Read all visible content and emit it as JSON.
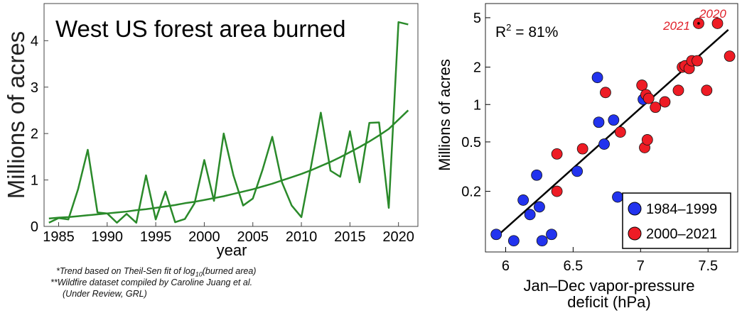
{
  "chart_data": [
    {
      "type": "line",
      "title": "West US forest area burned",
      "xlabel": "year",
      "ylabel": "Millions of acres",
      "xlim": [
        1983.5,
        2022
      ],
      "ylim": [
        0,
        4.8
      ],
      "xticks": [
        1985,
        1990,
        1995,
        2000,
        2005,
        2010,
        2015,
        2020
      ],
      "yticks": [
        0,
        1,
        2,
        3,
        4
      ],
      "line_color": "#2a8a2a",
      "x": [
        1984,
        1985,
        1986,
        1987,
        1988,
        1989,
        1990,
        1991,
        1992,
        1993,
        1994,
        1995,
        1996,
        1997,
        1998,
        1999,
        2000,
        2001,
        2002,
        2003,
        2004,
        2005,
        2006,
        2007,
        2008,
        2009,
        2010,
        2011,
        2012,
        2013,
        2014,
        2015,
        2016,
        2017,
        2018,
        2019,
        2020,
        2021
      ],
      "series": [
        {
          "values": [
            0.08,
            0.18,
            0.15,
            0.8,
            1.65,
            0.3,
            0.28,
            0.08,
            0.27,
            0.08,
            1.1,
            0.15,
            0.75,
            0.09,
            0.16,
            0.5,
            1.43,
            0.55,
            2.0,
            1.1,
            0.45,
            0.6,
            1.22,
            1.93,
            0.95,
            0.45,
            0.2,
            1.3,
            2.45,
            1.2,
            1.07,
            2.05,
            0.95,
            2.23,
            2.24,
            0.4,
            4.4,
            4.35
          ]
        },
        {
          "values": [
            0.17,
            0.19,
            0.2,
            0.22,
            0.24,
            0.26,
            0.28,
            0.3,
            0.32,
            0.35,
            0.37,
            0.4,
            0.43,
            0.46,
            0.5,
            0.53,
            0.57,
            0.61,
            0.65,
            0.7,
            0.75,
            0.8,
            0.86,
            0.92,
            0.99,
            1.06,
            1.13,
            1.21,
            1.3,
            1.39,
            1.49,
            1.6,
            1.71,
            1.83,
            1.96,
            2.1,
            2.3,
            2.5
          ]
        }
      ],
      "footnotes": [
        "*Trend based on Theil-Sen fit of log",
        "10",
        "(burned area)",
        "**Wildfire dataset compiled by Caroline Juang et al.",
        "(Under Review, GRL)"
      ]
    },
    {
      "type": "scatter",
      "xlabel_line1": "Jan–Dec vapor-pressure",
      "xlabel_line2": "deficit (hPa)",
      "ylabel": "Millions of acres",
      "xlim": [
        5.85,
        7.72
      ],
      "ylim": [
        0.065,
        6.5
      ],
      "yscale": "log",
      "xticks": [
        "6",
        "6.5",
        "7",
        "7.5"
      ],
      "xtick_values": [
        6,
        6.5,
        7,
        7.5
      ],
      "yticks": [
        "0.2",
        "0.5",
        "1",
        "2",
        "5"
      ],
      "ytick_values": [
        0.2,
        0.5,
        1,
        2,
        5
      ],
      "annotation_r2": "R",
      "annotation_sup": "2",
      "annotation_rest": " = 81%",
      "labels": [
        {
          "text": "2021",
          "x": 7.43,
          "y": 4.5
        },
        {
          "text": "2020",
          "x": 7.57,
          "y": 4.5
        }
      ],
      "label_color": "#e0202a",
      "fit": {
        "x": [
          5.95,
          7.65
        ],
        "y": [
          0.09,
          4.0
        ]
      },
      "series": [
        {
          "name": "1984–1999",
          "color": "#2233ee",
          "points": [
            [
              5.93,
              0.09
            ],
            [
              6.06,
              0.08
            ],
            [
              6.13,
              0.17
            ],
            [
              6.18,
              0.13
            ],
            [
              6.23,
              0.27
            ],
            [
              6.25,
              0.15
            ],
            [
              6.27,
              0.08
            ],
            [
              6.34,
              0.09
            ],
            [
              6.53,
              0.29
            ],
            [
              6.68,
              1.65
            ],
            [
              6.69,
              0.72
            ],
            [
              6.73,
              0.48
            ],
            [
              6.8,
              0.75
            ],
            [
              6.83,
              0.18
            ],
            [
              7.02,
              1.1
            ]
          ]
        },
        {
          "name": "2000–2021",
          "color": "#ee1c25",
          "points": [
            [
              6.38,
              0.4
            ],
            [
              6.38,
              0.2
            ],
            [
              6.57,
              0.44
            ],
            [
              6.74,
              1.25
            ],
            [
              6.85,
              0.6
            ],
            [
              7.01,
              1.43
            ],
            [
              7.03,
              0.45
            ],
            [
              7.04,
              1.2
            ],
            [
              7.05,
              0.52
            ],
            [
              7.06,
              1.12
            ],
            [
              7.11,
              0.95
            ],
            [
              7.18,
              1.05
            ],
            [
              7.28,
              1.3
            ],
            [
              7.31,
              2.0
            ],
            [
              7.33,
              2.05
            ],
            [
              7.36,
              1.95
            ],
            [
              7.38,
              2.25
            ],
            [
              7.42,
              2.25
            ],
            [
              7.43,
              4.5
            ],
            [
              7.49,
              1.3
            ],
            [
              7.57,
              4.5
            ],
            [
              7.66,
              2.45
            ]
          ]
        }
      ]
    }
  ]
}
